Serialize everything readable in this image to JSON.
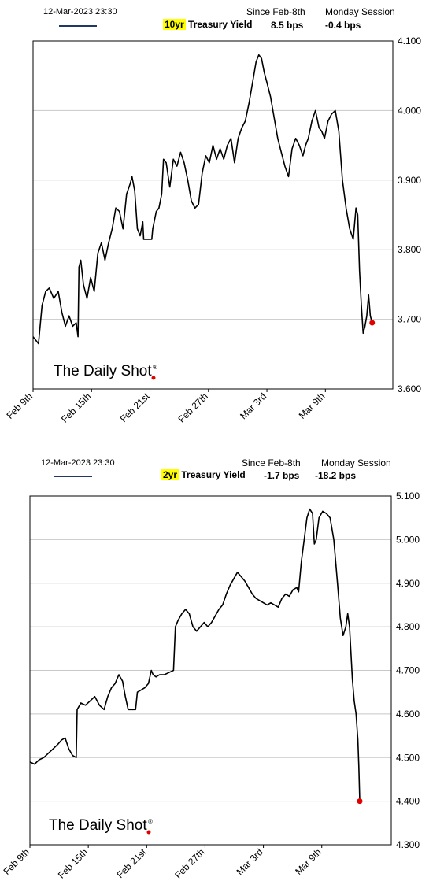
{
  "colors": {
    "line": "#000000",
    "legend_line": "#1f3864",
    "highlight": "#ffff00",
    "end_marker": "#e00000",
    "grid": "#c8c8c8"
  },
  "watermark": "The Daily Shot",
  "watermark_mark": "®",
  "panels": [
    {
      "timestamp": "12-Mar-2023 23:30",
      "series_tag": "10yr",
      "series_rest": " Treasury Yield",
      "col1_head": "Since Feb-8th",
      "col1_val": "8.5 bps",
      "col2_head": "Monday Session",
      "col2_val": "-0.4 bps"
    },
    {
      "timestamp": "12-Mar-2023 23:30",
      "series_tag": "2yr",
      "series_rest": " Treasury Yield",
      "col1_head": "Since Feb-8th",
      "col1_val": "-1.7 bps",
      "col2_head": "Monday Session",
      "col2_val": "-18.2 bps"
    }
  ],
  "chart_data": [
    {
      "type": "line",
      "title": "10yr Treasury Yield",
      "x_ticks": [
        "Feb 9th",
        "Feb 15th",
        "Feb 21st",
        "Feb 27th",
        "Mar 3rd",
        "Mar 9th"
      ],
      "ylim": [
        3.6,
        4.1
      ],
      "y_ticks": [
        "3.600",
        "3.700",
        "3.800",
        "3.900",
        "4.000",
        "4.100"
      ],
      "grid": "horizontal",
      "points": [
        [
          0.0,
          3.675
        ],
        [
          0.6,
          3.665
        ],
        [
          1.0,
          3.72
        ],
        [
          1.4,
          3.74
        ],
        [
          1.8,
          3.745
        ],
        [
          2.3,
          3.73
        ],
        [
          2.8,
          3.74
        ],
        [
          3.2,
          3.71
        ],
        [
          3.6,
          3.69
        ],
        [
          4.0,
          3.705
        ],
        [
          4.4,
          3.69
        ],
        [
          4.8,
          3.695
        ],
        [
          5.0,
          3.675
        ],
        [
          5.1,
          3.775
        ],
        [
          5.3,
          3.785
        ],
        [
          5.6,
          3.75
        ],
        [
          6.0,
          3.73
        ],
        [
          6.4,
          3.76
        ],
        [
          6.8,
          3.74
        ],
        [
          7.2,
          3.795
        ],
        [
          7.6,
          3.81
        ],
        [
          8.0,
          3.785
        ],
        [
          8.4,
          3.81
        ],
        [
          8.8,
          3.83
        ],
        [
          9.2,
          3.86
        ],
        [
          9.6,
          3.855
        ],
        [
          10.0,
          3.83
        ],
        [
          10.4,
          3.88
        ],
        [
          10.8,
          3.895
        ],
        [
          11.0,
          3.905
        ],
        [
          11.3,
          3.885
        ],
        [
          11.6,
          3.83
        ],
        [
          11.9,
          3.82
        ],
        [
          12.2,
          3.84
        ],
        [
          12.3,
          3.815
        ],
        [
          13.2,
          3.815
        ],
        [
          13.3,
          3.83
        ],
        [
          13.7,
          3.855
        ],
        [
          14.0,
          3.86
        ],
        [
          14.3,
          3.88
        ],
        [
          14.5,
          3.93
        ],
        [
          14.8,
          3.925
        ],
        [
          15.2,
          3.89
        ],
        [
          15.6,
          3.93
        ],
        [
          16.0,
          3.92
        ],
        [
          16.4,
          3.94
        ],
        [
          16.8,
          3.925
        ],
        [
          17.2,
          3.9
        ],
        [
          17.6,
          3.87
        ],
        [
          18.0,
          3.86
        ],
        [
          18.4,
          3.865
        ],
        [
          18.8,
          3.91
        ],
        [
          19.2,
          3.935
        ],
        [
          19.6,
          3.925
        ],
        [
          20.0,
          3.95
        ],
        [
          20.4,
          3.93
        ],
        [
          20.8,
          3.945
        ],
        [
          21.2,
          3.93
        ],
        [
          21.6,
          3.95
        ],
        [
          22.0,
          3.96
        ],
        [
          22.4,
          3.925
        ],
        [
          22.8,
          3.96
        ],
        [
          23.2,
          3.975
        ],
        [
          23.6,
          3.985
        ],
        [
          24.0,
          4.01
        ],
        [
          24.4,
          4.04
        ],
        [
          24.8,
          4.07
        ],
        [
          25.1,
          4.08
        ],
        [
          25.4,
          4.075
        ],
        [
          25.7,
          4.055
        ],
        [
          26.0,
          4.04
        ],
        [
          26.4,
          4.02
        ],
        [
          26.8,
          3.99
        ],
        [
          27.2,
          3.96
        ],
        [
          27.6,
          3.94
        ],
        [
          28.0,
          3.92
        ],
        [
          28.4,
          3.905
        ],
        [
          28.8,
          3.945
        ],
        [
          29.2,
          3.96
        ],
        [
          29.6,
          3.95
        ],
        [
          30.0,
          3.935
        ],
        [
          30.3,
          3.95
        ],
        [
          30.6,
          3.96
        ],
        [
          31.0,
          3.985
        ],
        [
          31.4,
          4.0
        ],
        [
          31.8,
          3.975
        ],
        [
          32.1,
          3.97
        ],
        [
          32.4,
          3.96
        ],
        [
          32.8,
          3.985
        ],
        [
          33.2,
          3.995
        ],
        [
          33.6,
          4.0
        ],
        [
          34.0,
          3.97
        ],
        [
          34.4,
          3.9
        ],
        [
          34.8,
          3.86
        ],
        [
          35.2,
          3.83
        ],
        [
          35.6,
          3.815
        ],
        [
          35.9,
          3.86
        ],
        [
          36.1,
          3.85
        ],
        [
          36.3,
          3.77
        ],
        [
          36.5,
          3.72
        ],
        [
          36.7,
          3.68
        ],
        [
          36.9,
          3.69
        ],
        [
          37.1,
          3.705
        ],
        [
          37.3,
          3.735
        ],
        [
          37.5,
          3.705
        ],
        [
          37.7,
          3.695
        ]
      ],
      "x_domain": [
        0,
        40
      ],
      "tick_positions": [
        0,
        6.5,
        13,
        19.5,
        26,
        32.5
      ]
    },
    {
      "type": "line",
      "title": "2yr Treasury Yield",
      "x_ticks": [
        "Feb 9th",
        "Feb 15th",
        "Feb 21st",
        "Feb 27th",
        "Mar 3rd",
        "Mar 9th"
      ],
      "ylim": [
        4.3,
        5.1
      ],
      "y_ticks": [
        "4.300",
        "4.400",
        "4.500",
        "4.600",
        "4.700",
        "4.800",
        "4.900",
        "5.000",
        "5.100"
      ],
      "grid": "horizontal",
      "points": [
        [
          0.0,
          4.49
        ],
        [
          0.5,
          4.485
        ],
        [
          1.0,
          4.495
        ],
        [
          1.5,
          4.5
        ],
        [
          2.0,
          4.51
        ],
        [
          2.5,
          4.52
        ],
        [
          3.0,
          4.53
        ],
        [
          3.4,
          4.54
        ],
        [
          3.8,
          4.545
        ],
        [
          4.2,
          4.52
        ],
        [
          4.6,
          4.505
        ],
        [
          5.0,
          4.5
        ],
        [
          5.1,
          4.61
        ],
        [
          5.5,
          4.625
        ],
        [
          6.0,
          4.62
        ],
        [
          6.5,
          4.63
        ],
        [
          7.0,
          4.64
        ],
        [
          7.5,
          4.62
        ],
        [
          8.0,
          4.61
        ],
        [
          8.4,
          4.64
        ],
        [
          8.8,
          4.66
        ],
        [
          9.2,
          4.67
        ],
        [
          9.6,
          4.69
        ],
        [
          10.0,
          4.675
        ],
        [
          10.3,
          4.64
        ],
        [
          10.6,
          4.61
        ],
        [
          11.4,
          4.61
        ],
        [
          11.6,
          4.65
        ],
        [
          12.0,
          4.655
        ],
        [
          12.4,
          4.66
        ],
        [
          12.8,
          4.67
        ],
        [
          13.1,
          4.7
        ],
        [
          13.3,
          4.69
        ],
        [
          13.6,
          4.685
        ],
        [
          14.0,
          4.69
        ],
        [
          14.5,
          4.69
        ],
        [
          15.0,
          4.695
        ],
        [
          15.5,
          4.7
        ],
        [
          15.7,
          4.8
        ],
        [
          16.0,
          4.815
        ],
        [
          16.4,
          4.83
        ],
        [
          16.8,
          4.84
        ],
        [
          17.2,
          4.83
        ],
        [
          17.6,
          4.8
        ],
        [
          18.0,
          4.79
        ],
        [
          18.4,
          4.8
        ],
        [
          18.8,
          4.81
        ],
        [
          19.2,
          4.8
        ],
        [
          19.6,
          4.81
        ],
        [
          20.0,
          4.825
        ],
        [
          20.4,
          4.84
        ],
        [
          20.8,
          4.85
        ],
        [
          21.2,
          4.875
        ],
        [
          21.6,
          4.895
        ],
        [
          22.0,
          4.91
        ],
        [
          22.4,
          4.925
        ],
        [
          22.8,
          4.915
        ],
        [
          23.2,
          4.905
        ],
        [
          23.6,
          4.89
        ],
        [
          24.0,
          4.875
        ],
        [
          24.4,
          4.865
        ],
        [
          24.8,
          4.86
        ],
        [
          25.2,
          4.855
        ],
        [
          25.6,
          4.85
        ],
        [
          26.0,
          4.855
        ],
        [
          26.4,
          4.85
        ],
        [
          26.8,
          4.845
        ],
        [
          27.2,
          4.865
        ],
        [
          27.6,
          4.875
        ],
        [
          28.0,
          4.87
        ],
        [
          28.4,
          4.885
        ],
        [
          28.8,
          4.89
        ],
        [
          29.0,
          4.88
        ],
        [
          29.3,
          4.95
        ],
        [
          29.6,
          5.0
        ],
        [
          29.9,
          5.05
        ],
        [
          30.2,
          5.07
        ],
        [
          30.5,
          5.06
        ],
        [
          30.7,
          4.99
        ],
        [
          30.9,
          5.0
        ],
        [
          31.2,
          5.05
        ],
        [
          31.6,
          5.065
        ],
        [
          32.0,
          5.06
        ],
        [
          32.4,
          5.05
        ],
        [
          32.8,
          5.0
        ],
        [
          33.2,
          4.9
        ],
        [
          33.5,
          4.82
        ],
        [
          33.8,
          4.78
        ],
        [
          34.1,
          4.8
        ],
        [
          34.3,
          4.83
        ],
        [
          34.5,
          4.8
        ],
        [
          34.8,
          4.68
        ],
        [
          35.0,
          4.63
        ],
        [
          35.2,
          4.6
        ],
        [
          35.4,
          4.54
        ],
        [
          35.5,
          4.48
        ],
        [
          35.6,
          4.4
        ]
      ],
      "x_domain": [
        0,
        39
      ],
      "tick_positions": [
        0,
        6.3,
        12.6,
        18.9,
        25.2,
        31.5
      ]
    }
  ]
}
